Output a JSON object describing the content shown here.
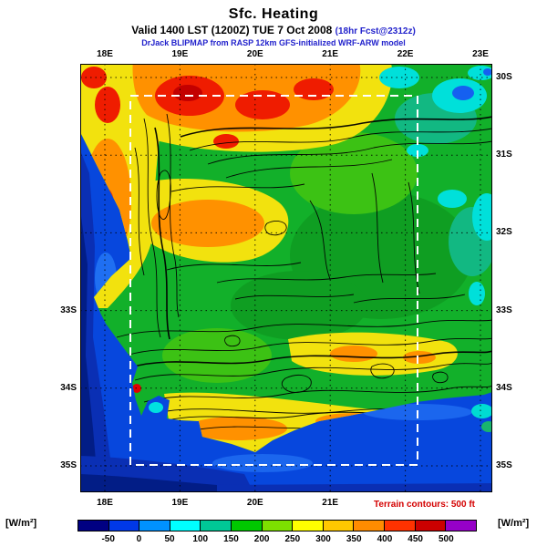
{
  "header": {
    "title": "Sfc. Heating",
    "valid_black": "Valid 1400 LST (1200Z) TUE 7 Oct 2008",
    "valid_blue": "(18hr Fcst@2312z)",
    "model_line": "DrJack BLIPMAP from RASP 12km GFS-initialized WRF-ARW model"
  },
  "map": {
    "top_axis_labels": [
      "18E",
      "19E",
      "20E",
      "21E",
      "22E",
      "23E"
    ],
    "bottom_axis_labels": [
      "18E",
      "19E",
      "20E",
      "21E"
    ],
    "left_axis_labels": [
      "33S",
      "34S",
      "35S"
    ],
    "right_axis_labels": [
      "30S",
      "31S",
      "32S",
      "33S",
      "34S",
      "35S"
    ],
    "terrain_note": "Terrain contours: 500 ft",
    "terrain_note_color": "#d40000",
    "domain_box_style": "white-dashed-rectangle"
  },
  "legend": {
    "unit_left": "[W/m²]",
    "unit_right": "[W/m²]",
    "ticks": [
      "-50",
      "0",
      "50",
      "100",
      "150",
      "200",
      "250",
      "300",
      "350",
      "400",
      "450",
      "500"
    ],
    "colors": [
      "#000082",
      "#0038e8",
      "#0092ff",
      "#00ffff",
      "#00c896",
      "#00c800",
      "#7de000",
      "#ffff00",
      "#ffc800",
      "#ff8c00",
      "#ff3200",
      "#cc0000",
      "#9600c8"
    ],
    "header_blue": "#2222cc"
  },
  "chart_data": {
    "type": "heatmap",
    "title": "Sfc. Heating",
    "units": "W/m²",
    "valid": "Valid 1400 LST (1200Z) TUE 7 Oct 2008 (18hr Fcst@2312z)",
    "source_line": "DrJack BLIPMAP from RASP 12km GFS-initialized WRF-ARW model",
    "colorbar_ticks": [
      -50,
      0,
      50,
      100,
      150,
      200,
      250,
      300,
      350,
      400,
      450,
      500
    ],
    "x_ticks": [
      "18E",
      "19E",
      "20E",
      "21E",
      "22E",
      "23E"
    ],
    "y_ticks": [
      "30S",
      "31S",
      "32S",
      "33S",
      "34S",
      "35S"
    ],
    "overlay": "Terrain contours: 500 ft",
    "legend_position": "bottom",
    "grid": true,
    "notes": "Filled surface-heating contours over the Western Cape (South Africa); ocean ~0 W/m² (blue), strongest heating (orange/red ~350-450) in the northern interior band and along coastal lowlands; black terrain contour lines; white dashed model-domain box"
  }
}
